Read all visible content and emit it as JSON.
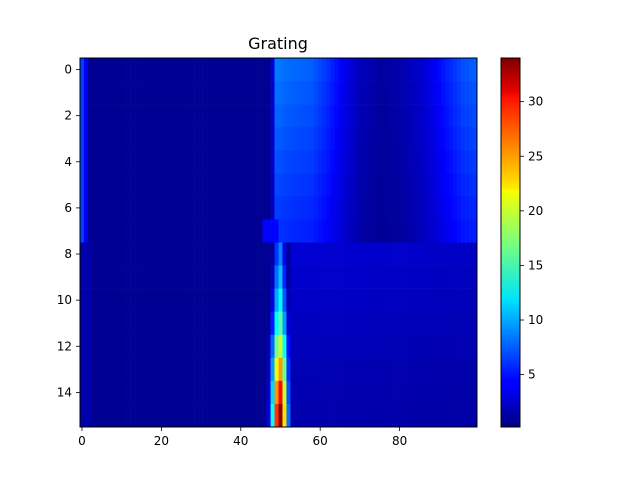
{
  "chart_data": {
    "type": "heatmap",
    "title": "Grating",
    "xlabel": "",
    "ylabel": "",
    "colormap": "jet",
    "rows": 16,
    "cols": 100,
    "xlim": [
      -0.5,
      99.5
    ],
    "ylim": [
      15.5,
      -0.5
    ],
    "x_ticks": [
      0,
      20,
      40,
      60,
      80
    ],
    "y_ticks": [
      0,
      2,
      4,
      6,
      8,
      10,
      12,
      14
    ],
    "colorbar": {
      "min": 0.2,
      "max": 34,
      "ticks": [
        5,
        10,
        15,
        20,
        25,
        30
      ]
    },
    "grid": false,
    "model": {
      "background": 0.8,
      "top_rows": [
        0,
        1,
        2,
        3,
        4,
        5,
        6,
        7
      ],
      "top_left_edge": {
        "col": 0,
        "value": 6.5
      },
      "top_left_edge_col1": 4.0,
      "top_band": {
        "start_col": 48,
        "end_col": 99,
        "values_at": [
          [
            48,
            3.0
          ],
          [
            49,
            8.5
          ],
          [
            52,
            8.0
          ],
          [
            58,
            7.5
          ],
          [
            62,
            6.0
          ],
          [
            66,
            4.0
          ],
          [
            70,
            2.2
          ],
          [
            75,
            1.3
          ],
          [
            80,
            1.6
          ],
          [
            86,
            3.0
          ],
          [
            92,
            5.5
          ],
          [
            96,
            7.0
          ],
          [
            99,
            7.5
          ]
        ]
      },
      "bottom_band_level": [
        3.0,
        2.8,
        2.6,
        2.4,
        2.2,
        2.0,
        1.9,
        1.8
      ],
      "bottom_peak": {
        "center_col": 50,
        "row_peaks": [
          9,
          11,
          13,
          16,
          20,
          25,
          30,
          34
        ],
        "row_widths": [
          0.9,
          1.0,
          1.1,
          1.2,
          1.3,
          1.3,
          1.3,
          1.3
        ]
      }
    }
  }
}
